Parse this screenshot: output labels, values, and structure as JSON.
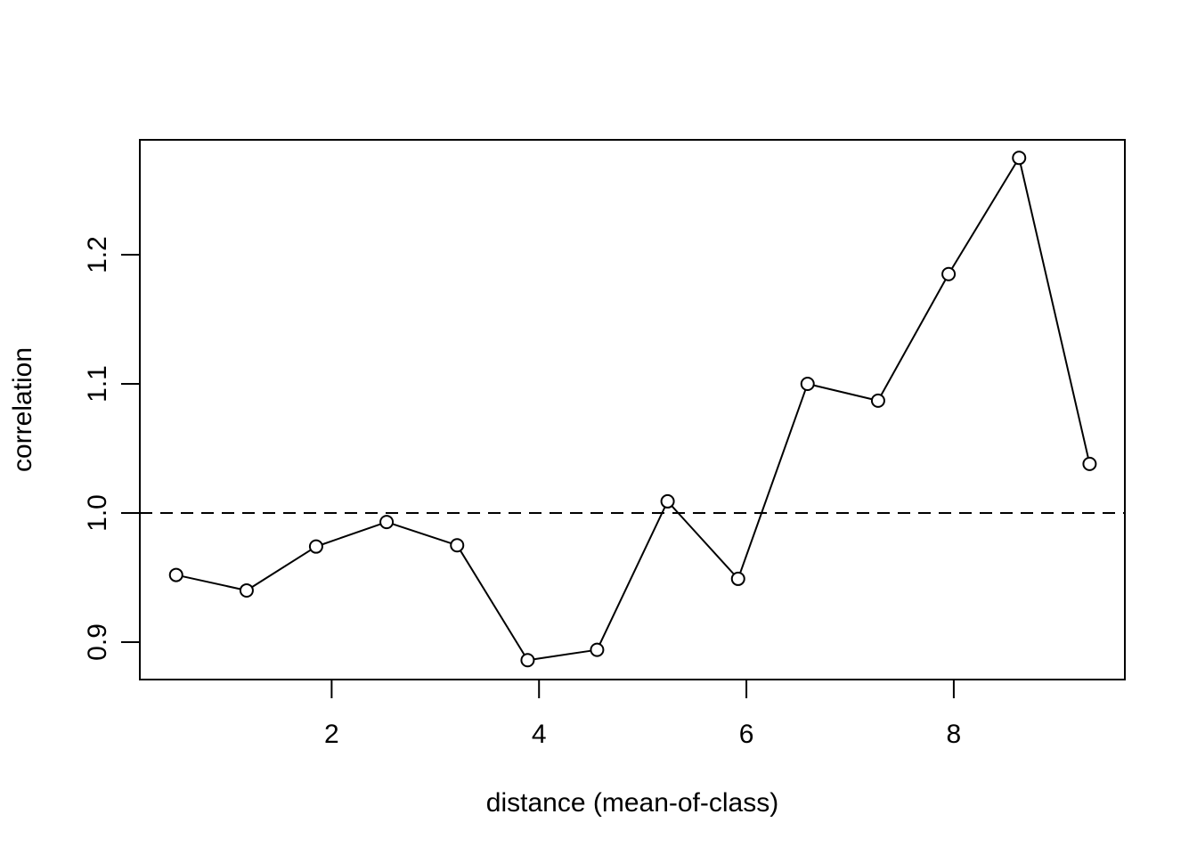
{
  "chart_data": {
    "type": "line",
    "xlabel": "distance (mean-of-class)",
    "ylabel": "correlation",
    "xlim": [
      0.15,
      9.65
    ],
    "ylim": [
      0.871,
      1.289
    ],
    "x_ticks": [
      2,
      4,
      6,
      8
    ],
    "y_ticks": [
      0.9,
      1.0,
      1.1,
      1.2
    ],
    "x_tick_labels": [
      "2",
      "4",
      "6",
      "8"
    ],
    "y_tick_labels": [
      "0.9",
      "1.0",
      "1.1",
      "1.2"
    ],
    "grid": false,
    "reference_line": {
      "y": 1.0,
      "style": "dashed"
    },
    "series": [
      {
        "marker": "open-circle",
        "x": [
          0.5,
          1.18,
          1.85,
          2.53,
          3.21,
          3.89,
          4.56,
          5.24,
          5.92,
          6.59,
          7.27,
          7.95,
          8.63,
          9.31
        ],
        "values": [
          0.952,
          0.94,
          0.974,
          0.993,
          0.975,
          0.886,
          0.894,
          1.009,
          0.949,
          1.1,
          1.087,
          1.185,
          1.275,
          1.038
        ]
      }
    ]
  }
}
